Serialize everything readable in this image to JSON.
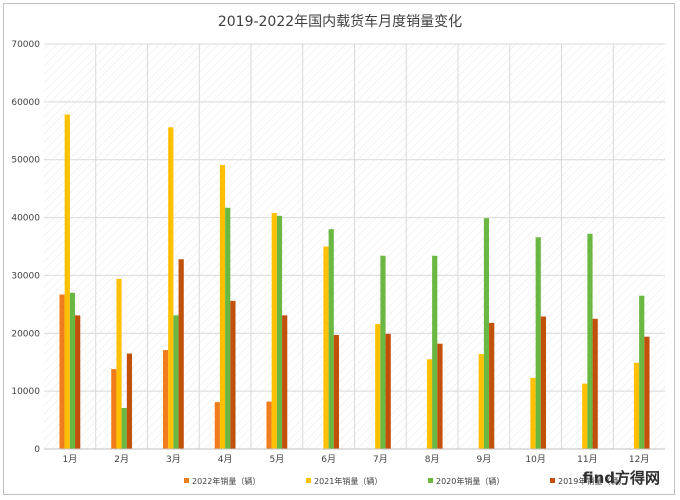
{
  "chart_data": {
    "type": "bar",
    "title": "2019-2022年国内载货车月度销量变化",
    "xlabel": "",
    "ylabel": "",
    "ylim": [
      0,
      70000
    ],
    "yticks": [
      0,
      10000,
      20000,
      30000,
      40000,
      50000,
      60000,
      70000
    ],
    "categories": [
      "1月",
      "2月",
      "3月",
      "4月",
      "5月",
      "6月",
      "7月",
      "8月",
      "9月",
      "10月",
      "11月",
      "12月"
    ],
    "grid": true,
    "legend_position": "bottom",
    "series": [
      {
        "name": "2022年销量（辆）",
        "color": "#f07c1c",
        "values": [
          26700,
          13800,
          17100,
          8100,
          8200,
          null,
          null,
          null,
          null,
          null,
          null,
          null
        ]
      },
      {
        "name": "2021年销量（辆）",
        "color": "#ffc000",
        "values": [
          57800,
          29400,
          55600,
          49100,
          40800,
          35000,
          21600,
          15500,
          16400,
          12300,
          11300,
          14900
        ]
      },
      {
        "name": "2020年销量（辆）",
        "color": "#6ab742",
        "values": [
          27000,
          7100,
          23100,
          41700,
          40300,
          38000,
          33400,
          33400,
          39900,
          36600,
          37200,
          26500
        ]
      },
      {
        "name": "2019年销量（辆）",
        "color": "#c0500a",
        "values": [
          23100,
          16500,
          32800,
          25600,
          23100,
          19700,
          19900,
          18200,
          21800,
          22900,
          22500,
          19400
        ]
      }
    ]
  },
  "watermark": {
    "prefix": "f",
    "dot": "i",
    "middle": "nd",
    "suffix": "方得网"
  }
}
